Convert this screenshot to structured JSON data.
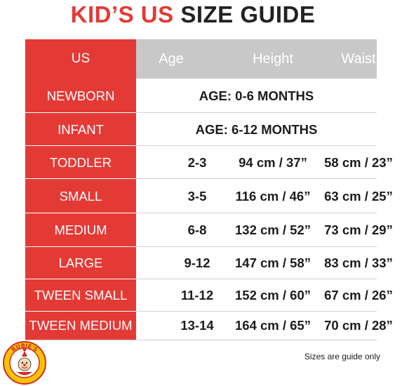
{
  "title": {
    "part1": "KID’S US ",
    "part2": "SIZE GUIDE"
  },
  "colors": {
    "accent": "#e43a36",
    "header_gray": "#c8c8c8",
    "text_dark": "#222222",
    "logo_yellow": "#f5c400"
  },
  "table": {
    "header": {
      "us": "US",
      "age": "Age",
      "height": "Height",
      "waist": "Waist"
    },
    "rows": [
      {
        "size": "NEWBORN",
        "span": "AGE: 0-6 MONTHS"
      },
      {
        "size": "INFANT",
        "span": "AGE: 6-12 MONTHS"
      },
      {
        "size": "TODDLER",
        "age": "2-3",
        "height": "94 cm / 37”",
        "waist": "58 cm / 23”"
      },
      {
        "size": "SMALL",
        "age": "3-5",
        "height": "116 cm / 46”",
        "waist": "63 cm / 25”"
      },
      {
        "size": "MEDIUM",
        "age": "6-8",
        "height": "132 cm / 52”",
        "waist": "73 cm / 29”"
      },
      {
        "size": "LARGE",
        "age": "9-12",
        "height": "147 cm / 58”",
        "waist": "83 cm / 33”"
      },
      {
        "size": "TWEEN SMALL",
        "age": "11-12",
        "height": "152 cm / 60”",
        "waist": "67 cm / 26”"
      },
      {
        "size": "TWEEN MEDIUM",
        "age": "13-14",
        "height": "164 cm / 65”",
        "waist": "70 cm / 28”"
      }
    ]
  },
  "footer": {
    "note": "Sizes are guide only",
    "logo_text": "RUBIE'S",
    "logo_icon": "rubies-clown-logo-icon"
  }
}
